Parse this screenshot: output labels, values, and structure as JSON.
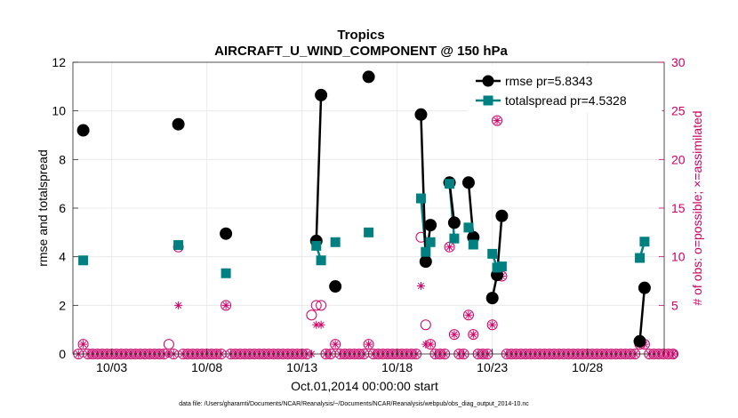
{
  "chart_data": {
    "type": "line",
    "title": "Tropics",
    "subtitle": "AIRCRAFT_U_WIND_COMPONENT @ 150 hPa",
    "xlabel": "Oct.01,2014 00:00:00 start",
    "ylabel": "rmse and totalspread",
    "y2label": "# of obs: o=possible; ×=assimilated",
    "footnote": "data file: /Users/gharamti/Documents/NCAR/Reanalysis/~/Documents/NCAR/Reanalysis/webpub/obs_diag_output_2014-10.nc",
    "xlim": [
      1,
      32.5
    ],
    "ylim": [
      0,
      12
    ],
    "y2lim": [
      0,
      30
    ],
    "x_ticks": [
      3,
      8,
      13,
      18,
      23,
      28
    ],
    "x_tick_labels": [
      "10/03",
      "10/08",
      "10/13",
      "10/18",
      "10/23",
      "10/28"
    ],
    "y_ticks": [
      0,
      2,
      4,
      6,
      8,
      10,
      12
    ],
    "y2_ticks": [
      0,
      5,
      10,
      15,
      20,
      25,
      30
    ],
    "grid": true,
    "legend_location": "top-right",
    "colors": {
      "rmse": "#000000",
      "totalspread": "#008080",
      "obs": "#cc0066"
    },
    "series": [
      {
        "name": "rmse pr=5.8343",
        "segments": [
          [
            [
              1.5,
              9.2
            ]
          ],
          [
            [
              6.5,
              9.45
            ]
          ],
          [
            [
              9.0,
              4.95
            ]
          ],
          [
            [
              13.75,
              4.65
            ],
            [
              14.0,
              10.65
            ]
          ],
          [
            [
              14.75,
              2.78
            ]
          ],
          [
            [
              16.5,
              11.4
            ]
          ],
          [
            [
              19.25,
              9.85
            ],
            [
              19.5,
              3.8
            ],
            [
              19.75,
              5.3
            ]
          ],
          [
            [
              20.75,
              7.05
            ],
            [
              21.0,
              5.4
            ]
          ],
          [
            [
              21.75,
              7.05
            ],
            [
              22.0,
              4.8
            ]
          ],
          [
            [
              23.0,
              2.3
            ],
            [
              23.25,
              3.25
            ],
            [
              23.5,
              5.68
            ]
          ],
          [
            [
              30.75,
              0.52
            ],
            [
              31.0,
              2.72
            ]
          ]
        ]
      },
      {
        "name": "totalspread pr=4.5328",
        "segments": [
          [
            [
              1.5,
              3.85
            ]
          ],
          [
            [
              6.5,
              4.48
            ]
          ],
          [
            [
              9.0,
              3.32
            ]
          ],
          [
            [
              13.75,
              4.45
            ],
            [
              14.0,
              3.85
            ]
          ],
          [
            [
              14.75,
              4.6
            ]
          ],
          [
            [
              16.5,
              5.0
            ]
          ],
          [
            [
              19.25,
              6.4
            ],
            [
              19.5,
              4.2
            ],
            [
              19.75,
              4.6
            ]
          ],
          [
            [
              20.75,
              7.0
            ],
            [
              21.0,
              4.75
            ]
          ],
          [
            [
              21.75,
              5.2
            ],
            [
              22.0,
              4.5
            ]
          ],
          [
            [
              23.0,
              4.12
            ],
            [
              23.25,
              3.55
            ],
            [
              23.5,
              3.6
            ]
          ],
          [
            [
              30.75,
              3.95
            ],
            [
              31.0,
              4.62
            ]
          ]
        ]
      }
    ],
    "obs_possible": {
      "x_start": 1.25,
      "x_end": 32.5,
      "step": 0.25,
      "nonzero": [
        [
          1.5,
          1
        ],
        [
          6.0,
          1
        ],
        [
          6.5,
          11
        ],
        [
          9.0,
          5
        ],
        [
          13.5,
          4
        ],
        [
          13.75,
          5
        ],
        [
          14.0,
          5
        ],
        [
          14.75,
          1
        ],
        [
          16.5,
          1
        ],
        [
          19.25,
          12
        ],
        [
          19.5,
          3
        ],
        [
          19.75,
          1
        ],
        [
          20.75,
          11
        ],
        [
          21.0,
          2
        ],
        [
          21.75,
          4
        ],
        [
          22.0,
          2
        ],
        [
          23.0,
          3
        ],
        [
          23.25,
          24
        ],
        [
          23.5,
          8
        ],
        [
          30.75,
          1
        ],
        [
          31.0,
          1
        ]
      ]
    },
    "obs_assimilated": {
      "nonzero": [
        [
          1.5,
          1
        ],
        [
          6.5,
          5
        ],
        [
          9.0,
          5
        ],
        [
          13.75,
          3
        ],
        [
          14.0,
          3
        ],
        [
          14.75,
          1
        ],
        [
          16.5,
          1
        ],
        [
          19.25,
          7
        ],
        [
          19.5,
          1
        ],
        [
          19.75,
          1
        ],
        [
          20.75,
          11
        ],
        [
          21.0,
          2
        ],
        [
          21.75,
          4
        ],
        [
          22.0,
          2
        ],
        [
          23.0,
          3
        ],
        [
          23.25,
          24
        ],
        [
          23.5,
          8
        ],
        [
          30.75,
          1
        ],
        [
          31.0,
          1
        ]
      ]
    }
  }
}
